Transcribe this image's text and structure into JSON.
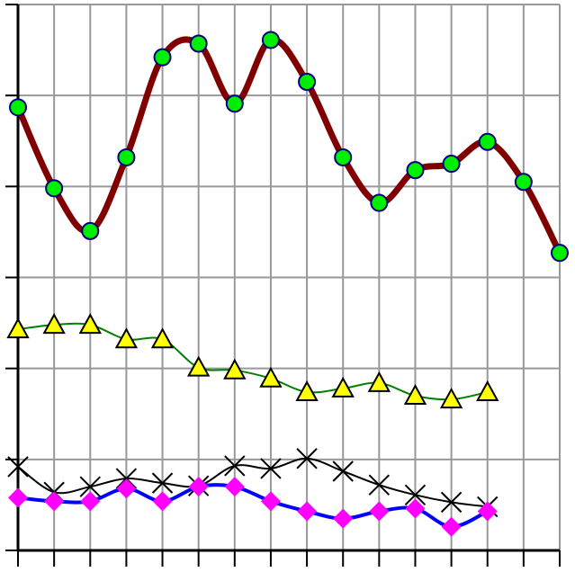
{
  "chart_data": {
    "type": "line",
    "x": [
      0,
      1,
      2,
      3,
      4,
      5,
      6,
      7,
      8,
      9,
      10,
      11,
      12,
      13,
      14,
      15
    ],
    "xlim": [
      0,
      15
    ],
    "xticks": [
      0,
      1,
      2,
      3,
      4,
      5,
      6,
      7,
      8,
      9,
      10,
      11,
      12,
      13,
      14,
      15
    ],
    "ylim": [
      0,
      6
    ],
    "yticks": [
      0,
      1,
      2,
      3,
      4,
      5,
      6
    ],
    "grid": true,
    "smooth": true,
    "series": [
      {
        "color": "#800000",
        "marker": "circle",
        "marker_color": "#00ee00",
        "width": 7,
        "values": [
          4.87,
          3.98,
          3.51,
          4.32,
          5.42,
          5.57,
          4.91,
          5.61,
          5.15,
          4.32,
          3.82,
          4.18,
          4.25,
          4.49,
          4.05,
          3.27
        ]
      },
      {
        "color": "#008000",
        "marker": "triangle",
        "marker_color": "#ffff00",
        "width": 2,
        "values": [
          2.43,
          2.48,
          2.48,
          2.32,
          2.32,
          2.01,
          1.98,
          1.89,
          1.74,
          1.78,
          1.84,
          1.7,
          1.66,
          1.74,
          null,
          null
        ]
      },
      {
        "color": "#000000",
        "marker": "x",
        "marker_color": "#000000",
        "width": 2,
        "values": [
          0.92,
          0.64,
          0.7,
          0.79,
          0.74,
          0.71,
          0.93,
          0.9,
          1.01,
          0.87,
          0.72,
          0.61,
          0.53,
          0.48,
          null,
          null
        ]
      },
      {
        "color": "#0000ff",
        "marker": "diamond",
        "marker_color": "#ff00ff",
        "width": 4,
        "values": [
          0.58,
          0.54,
          0.54,
          0.68,
          0.54,
          0.7,
          0.7,
          0.54,
          0.43,
          0.35,
          0.43,
          0.46,
          0.26,
          0.43,
          null,
          null
        ]
      }
    ]
  }
}
